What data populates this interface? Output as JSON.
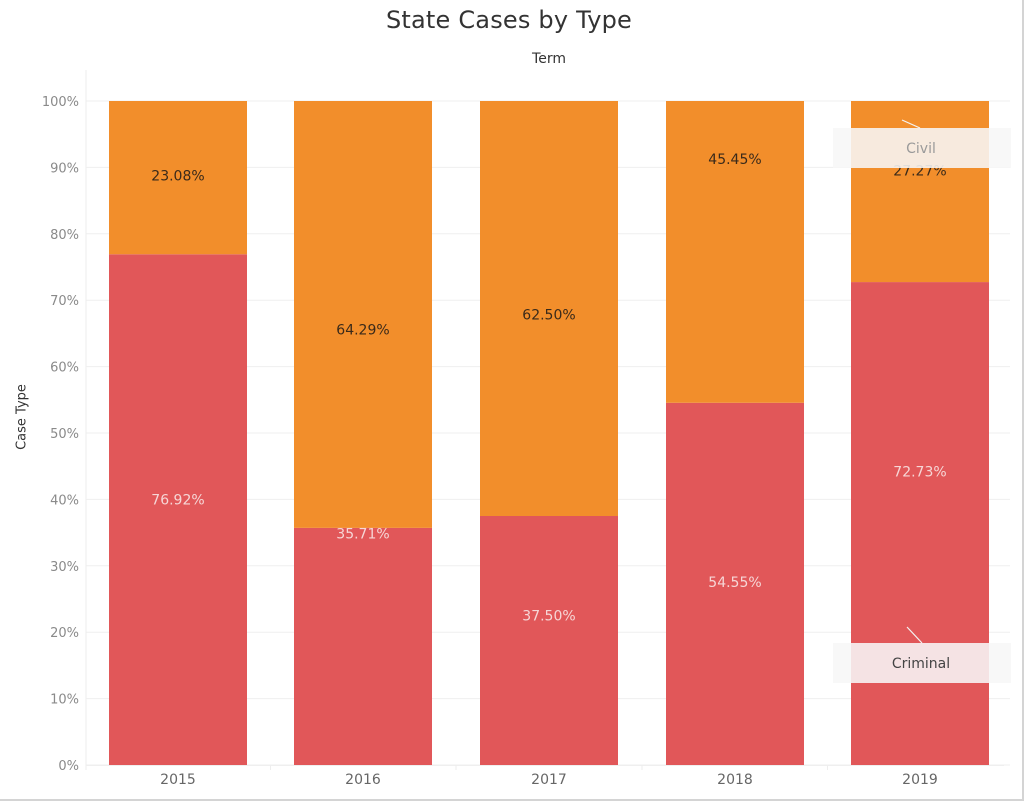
{
  "chart_data": {
    "type": "bar",
    "stacked": true,
    "normalized": true,
    "title": "State Cases by Type",
    "column_header": "Term",
    "xlabel": "",
    "ylabel": "Case Type",
    "ylim": [
      0,
      100
    ],
    "y_ticks": [
      "0%",
      "10%",
      "20%",
      "30%",
      "40%",
      "50%",
      "60%",
      "70%",
      "80%",
      "90%",
      "100%"
    ],
    "grid": true,
    "categories": [
      "2015",
      "2016",
      "2017",
      "2018",
      "2019"
    ],
    "series": [
      {
        "name": "Criminal",
        "color": "#e15759",
        "label_color": "#f6d6d6",
        "values": [
          76.92,
          35.71,
          37.5,
          54.55,
          72.73
        ],
        "labels": [
          "76.92%",
          "35.71%",
          "37.50%",
          "54.55%",
          "72.73%"
        ]
      },
      {
        "name": "Civil",
        "color": "#f28e2b",
        "label_color": "#3a2a1a",
        "values": [
          23.08,
          64.29,
          62.5,
          45.45,
          27.27
        ],
        "labels": [
          "23.08%",
          "64.29%",
          "62.50%",
          "45.45%",
          "27.27%"
        ]
      }
    ],
    "annotations": [
      {
        "text": "Civil",
        "category": "2019",
        "series": "Civil"
      },
      {
        "text": "Criminal",
        "category": "2019",
        "series": "Criminal"
      }
    ],
    "legend": "inline-annotations-right"
  }
}
